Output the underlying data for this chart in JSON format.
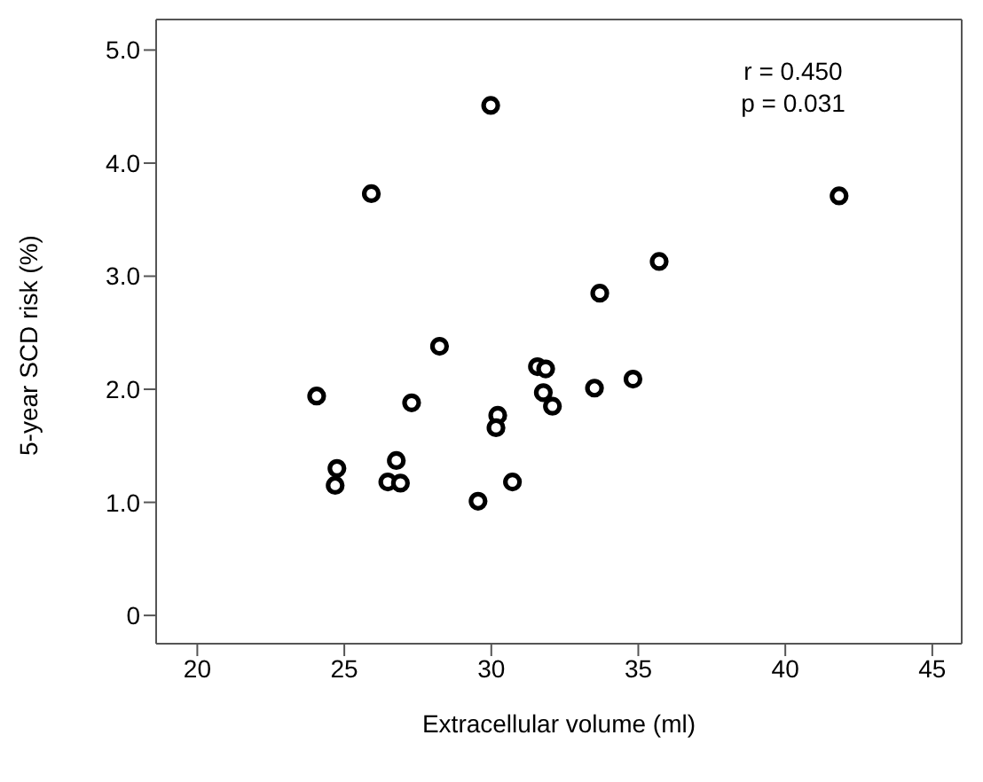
{
  "chart_data": {
    "type": "scatter",
    "xlabel": "Extracellular volume (ml)",
    "ylabel": "5-year SCD risk (%)",
    "annotations": [
      "r = 0.450",
      "p = 0.031"
    ],
    "x": [
      29.98,
      25.92,
      41.83,
      35.71,
      33.69,
      28.24,
      31.57,
      31.85,
      24.06,
      27.29,
      34.82,
      33.51,
      31.77,
      32.08,
      30.22,
      30.16,
      26.77,
      24.75,
      24.69,
      26.48,
      26.91,
      30.72,
      29.55
    ],
    "series": [
      {
        "color": "#000000",
        "values": [
          4.51,
          3.73,
          3.71,
          3.13,
          2.85,
          2.38,
          2.2,
          2.18,
          1.94,
          1.88,
          2.09,
          2.01,
          1.97,
          1.85,
          1.77,
          1.66,
          1.37,
          1.3,
          1.15,
          1.18,
          1.17,
          1.18,
          1.01
        ]
      }
    ],
    "xlim": [
      18.6,
      46
    ],
    "xticks": [
      20,
      25,
      30,
      35,
      40,
      45
    ],
    "ylim": [
      -0.25,
      5.27
    ],
    "yticks": [
      {
        "value": 0,
        "label": "0"
      },
      {
        "value": 1,
        "label": "1.0"
      },
      {
        "value": 2,
        "label": "2.0"
      },
      {
        "value": 3,
        "label": "3.0"
      },
      {
        "value": 4,
        "label": "4.0"
      },
      {
        "value": 5,
        "label": "5.0"
      }
    ],
    "grid": false,
    "legend": false,
    "marker": "circle"
  }
}
